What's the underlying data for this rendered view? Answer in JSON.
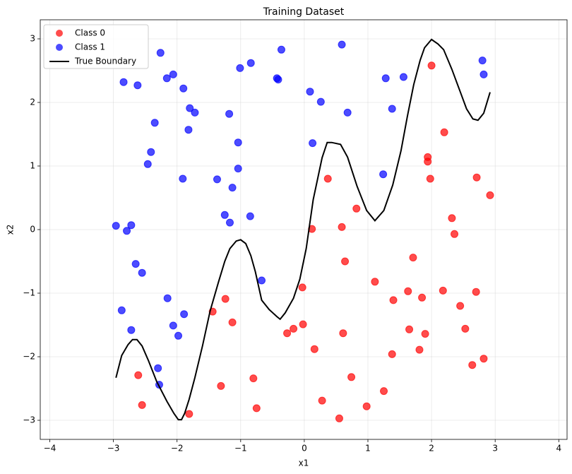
{
  "chart_data": {
    "type": "scatter",
    "title": "Training Dataset",
    "x_label": "x1",
    "y_label": "x2",
    "xlim": [
      -4.15,
      4.13
    ],
    "ylim": [
      -3.3,
      3.3
    ],
    "xticks": [
      {
        "value": -4,
        "label": "−4"
      },
      {
        "value": -3,
        "label": "−3"
      },
      {
        "value": -2,
        "label": "−2"
      },
      {
        "value": -1,
        "label": "−1"
      },
      0,
      1,
      2,
      3,
      4
    ],
    "yticks": [
      {
        "value": -3,
        "label": "−3"
      },
      {
        "value": -2,
        "label": "−2"
      },
      {
        "value": -1,
        "label": "−1"
      },
      0,
      1,
      2,
      3
    ],
    "grid": true,
    "legend": "upper left",
    "series": [
      {
        "name": "Class 0",
        "type": "scatter",
        "color": "red",
        "x": [
          2.0,
          2.2,
          1.94,
          1.94,
          1.98,
          2.71,
          2.92,
          0.37,
          0.82,
          2.32,
          2.36,
          0.12,
          0.59,
          0.64,
          1.71,
          1.11,
          -0.03,
          1.63,
          2.18,
          2.7,
          1.4,
          1.85,
          -1.24,
          2.45,
          -1.44,
          -1.13,
          -0.02,
          -0.17,
          -0.27,
          0.61,
          1.65,
          2.53,
          1.9,
          0.16,
          1.81,
          1.38,
          2.82,
          2.64,
          -2.61,
          0.74,
          -0.8,
          -1.31,
          1.25,
          0.28,
          -2.55,
          0.98,
          -0.75,
          -1.81,
          0.55
        ],
        "values": [
          2.58,
          1.53,
          1.14,
          1.07,
          0.8,
          0.82,
          0.54,
          0.8,
          0.33,
          0.18,
          -0.07,
          0.01,
          0.04,
          -0.5,
          -0.44,
          -0.82,
          -0.91,
          -0.97,
          -0.96,
          -0.98,
          -1.11,
          -1.07,
          -1.09,
          -1.2,
          -1.29,
          -1.46,
          -1.49,
          -1.56,
          -1.63,
          -1.63,
          -1.57,
          -1.56,
          -1.64,
          -1.88,
          -1.89,
          -1.96,
          -2.03,
          -2.13,
          -2.29,
          -2.32,
          -2.34,
          -2.46,
          -2.54,
          -2.69,
          -2.76,
          -2.78,
          -2.81,
          -2.9,
          -2.97
        ]
      },
      {
        "name": "Class 1",
        "type": "scatter",
        "color": "blue",
        "x": [
          -2.26,
          -0.36,
          0.59,
          2.8,
          2.82,
          -0.84,
          -1.01,
          -2.06,
          -2.16,
          -2.84,
          -2.62,
          -0.43,
          -0.41,
          1.56,
          1.28,
          -1.9,
          0.09,
          0.26,
          -1.8,
          -1.72,
          -1.18,
          0.68,
          1.38,
          -2.35,
          -1.82,
          -1.04,
          0.13,
          -2.41,
          -2.46,
          -1.04,
          1.24,
          -1.91,
          -1.37,
          -1.13,
          -1.25,
          -0.85,
          -1.17,
          -2.96,
          -2.72,
          -2.79,
          -2.65,
          -2.55,
          -0.67,
          -2.15,
          -2.87,
          -1.89,
          -2.72,
          -2.06,
          -1.98,
          -2.3,
          -2.28
        ],
        "values": [
          2.78,
          2.83,
          2.91,
          2.66,
          2.44,
          2.62,
          2.54,
          2.44,
          2.38,
          2.32,
          2.27,
          2.38,
          2.36,
          2.4,
          2.38,
          2.22,
          2.17,
          2.01,
          1.91,
          1.84,
          1.82,
          1.84,
          1.9,
          1.68,
          1.57,
          1.37,
          1.36,
          1.22,
          1.03,
          0.96,
          0.87,
          0.8,
          0.79,
          0.66,
          0.23,
          0.21,
          0.11,
          0.06,
          0.07,
          -0.02,
          -0.54,
          -0.68,
          -0.8,
          -1.08,
          -1.27,
          -1.33,
          -1.58,
          -1.51,
          -1.67,
          -2.18,
          -2.44
        ]
      },
      {
        "name": "True Boundary",
        "type": "line",
        "color": "black",
        "x": [
          -2.96,
          -2.87,
          -2.77,
          -2.7,
          -2.63,
          -2.55,
          -2.45,
          -2.32,
          -2.16,
          -2.05,
          -1.98,
          -1.93,
          -1.88,
          -1.81,
          -1.72,
          -1.6,
          -1.48,
          -1.35,
          -1.25,
          -1.17,
          -1.07,
          -1.0,
          -0.92,
          -0.84,
          -0.77,
          -0.67,
          -0.55,
          -0.43,
          -0.38,
          -0.3,
          -0.17,
          -0.07,
          0.03,
          0.14,
          0.28,
          0.36,
          0.43,
          0.57,
          0.68,
          0.83,
          0.98,
          1.11,
          1.25,
          1.39,
          1.52,
          1.62,
          1.72,
          1.82,
          1.89,
          2.0,
          2.1,
          2.19,
          2.32,
          2.45,
          2.55,
          2.65,
          2.73,
          2.82,
          2.92
        ],
        "values": [
          -2.33,
          -1.98,
          -1.81,
          -1.73,
          -1.73,
          -1.83,
          -2.06,
          -2.39,
          -2.7,
          -2.89,
          -2.99,
          -2.99,
          -2.89,
          -2.67,
          -2.33,
          -1.83,
          -1.28,
          -0.83,
          -0.5,
          -0.3,
          -0.18,
          -0.16,
          -0.22,
          -0.41,
          -0.66,
          -1.11,
          -1.26,
          -1.37,
          -1.41,
          -1.31,
          -1.08,
          -0.78,
          -0.3,
          0.47,
          1.13,
          1.37,
          1.37,
          1.34,
          1.14,
          0.68,
          0.3,
          0.14,
          0.3,
          0.7,
          1.24,
          1.78,
          2.28,
          2.66,
          2.86,
          2.99,
          2.92,
          2.83,
          2.52,
          2.17,
          1.9,
          1.74,
          1.72,
          1.83,
          2.16
        ]
      }
    ]
  }
}
